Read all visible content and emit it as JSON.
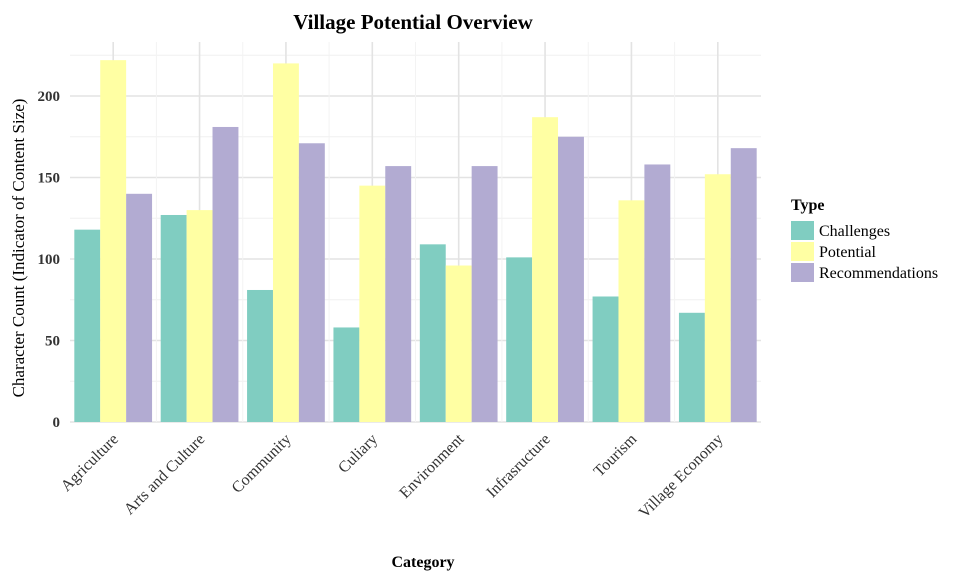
{
  "chart_data": {
    "type": "bar",
    "title": "Village Potential Overview",
    "xlabel": "Category",
    "ylabel": "Character Count (Indicator of Content Size)",
    "categories": [
      "Agriculture",
      "Arts and Culture",
      "Community",
      "Culiary",
      "Environment",
      "Infrasructure",
      "Tourism",
      "Village Economy"
    ],
    "series": [
      {
        "name": "Challenges",
        "color": "#80CDC1",
        "values": [
          118,
          127,
          81,
          58,
          109,
          101,
          77,
          67
        ]
      },
      {
        "name": "Potential",
        "color": "#FFFFA3",
        "values": [
          222,
          130,
          220,
          145,
          96,
          187,
          136,
          152
        ]
      },
      {
        "name": "Recommendations",
        "color": "#B2ABD2",
        "values": [
          140,
          181,
          171,
          157,
          157,
          175,
          158,
          168
        ]
      }
    ],
    "ylim": [
      0,
      230
    ],
    "yticks": [
      0,
      50,
      100,
      150,
      200
    ],
    "grid": true,
    "legend": {
      "title": "Type",
      "position": "right"
    }
  }
}
